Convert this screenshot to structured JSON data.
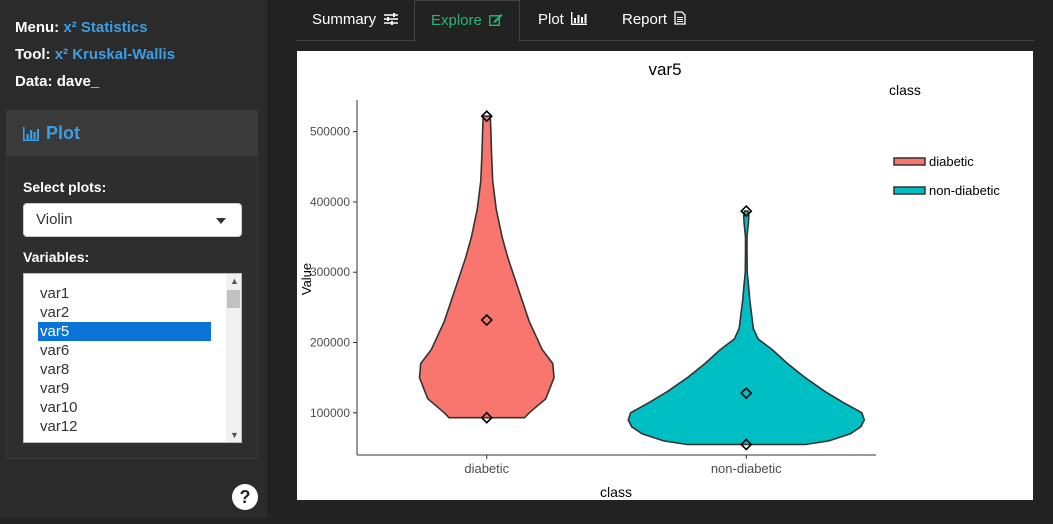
{
  "sidebar": {
    "menu_label": "Menu:",
    "menu_value": "x² Statistics",
    "tool_label": "Tool:",
    "tool_value": "x² Kruskal-Wallis",
    "data_label": "Data:",
    "data_value": "dave_",
    "panel_title": "Plot",
    "select_plots_label": "Select plots:",
    "select_plots_value": "Violin",
    "variables_label": "Variables:",
    "variables": [
      "var1",
      "var2",
      "var5",
      "var6",
      "var8",
      "var9",
      "var10",
      "var12"
    ],
    "selected_variable": "var5",
    "help_label": "?"
  },
  "tabs": [
    {
      "label": "Summary",
      "icon": "sliders-icon"
    },
    {
      "label": "Explore",
      "icon": "edit-icon",
      "active": true
    },
    {
      "label": "Plot",
      "icon": "bar-chart-icon"
    },
    {
      "label": "Report",
      "icon": "file-icon"
    }
  ],
  "colors": {
    "accent": "#3c9ee5",
    "active_tab": "#2ab27b",
    "diabetic": "#F8766D",
    "non_diabetic": "#00BFC4",
    "selection": "#0a74d9"
  },
  "chart_data": {
    "type": "violin",
    "title": "var5",
    "xlabel": "class",
    "ylabel": "Value",
    "categories": [
      "diabetic",
      "non-diabetic"
    ],
    "ylim": [
      40000,
      545000
    ],
    "yticks": [
      100000,
      200000,
      300000,
      400000,
      500000
    ],
    "ytick_labels": [
      "100000",
      "200000",
      "300000",
      "400000",
      "500000"
    ],
    "legend_title": "class",
    "legend_position": "right",
    "series": [
      {
        "name": "diabetic",
        "color": "#F8766D",
        "markers": [
          93000,
          232000,
          522000
        ],
        "density": [
          [
            93000,
            0.32
          ],
          [
            100000,
            0.36
          ],
          [
            120000,
            0.5
          ],
          [
            150000,
            0.57
          ],
          [
            170000,
            0.56
          ],
          [
            190000,
            0.47
          ],
          [
            230000,
            0.36
          ],
          [
            280000,
            0.26
          ],
          [
            320000,
            0.18
          ],
          [
            350000,
            0.13
          ],
          [
            390000,
            0.08
          ],
          [
            430000,
            0.05
          ],
          [
            470000,
            0.04
          ],
          [
            500000,
            0.035
          ],
          [
            522000,
            0.03
          ]
        ]
      },
      {
        "name": "non-diabetic",
        "color": "#00BFC4",
        "markers": [
          55000,
          128000,
          387000
        ],
        "density": [
          [
            55000,
            0.5
          ],
          [
            60000,
            0.7
          ],
          [
            70000,
            0.88
          ],
          [
            80000,
            0.97
          ],
          [
            90000,
            1.0
          ],
          [
            100000,
            0.98
          ],
          [
            115000,
            0.82
          ],
          [
            130000,
            0.67
          ],
          [
            150000,
            0.5
          ],
          [
            170000,
            0.35
          ],
          [
            190000,
            0.22
          ],
          [
            205000,
            0.1
          ],
          [
            220000,
            0.06
          ],
          [
            240000,
            0.045
          ],
          [
            260000,
            0.03
          ],
          [
            280000,
            0.02
          ],
          [
            300000,
            0.008
          ],
          [
            330000,
            0.006
          ],
          [
            350000,
            0.006
          ],
          [
            370000,
            0.018
          ],
          [
            380000,
            0.022
          ],
          [
            387000,
            0.015
          ]
        ]
      }
    ]
  }
}
